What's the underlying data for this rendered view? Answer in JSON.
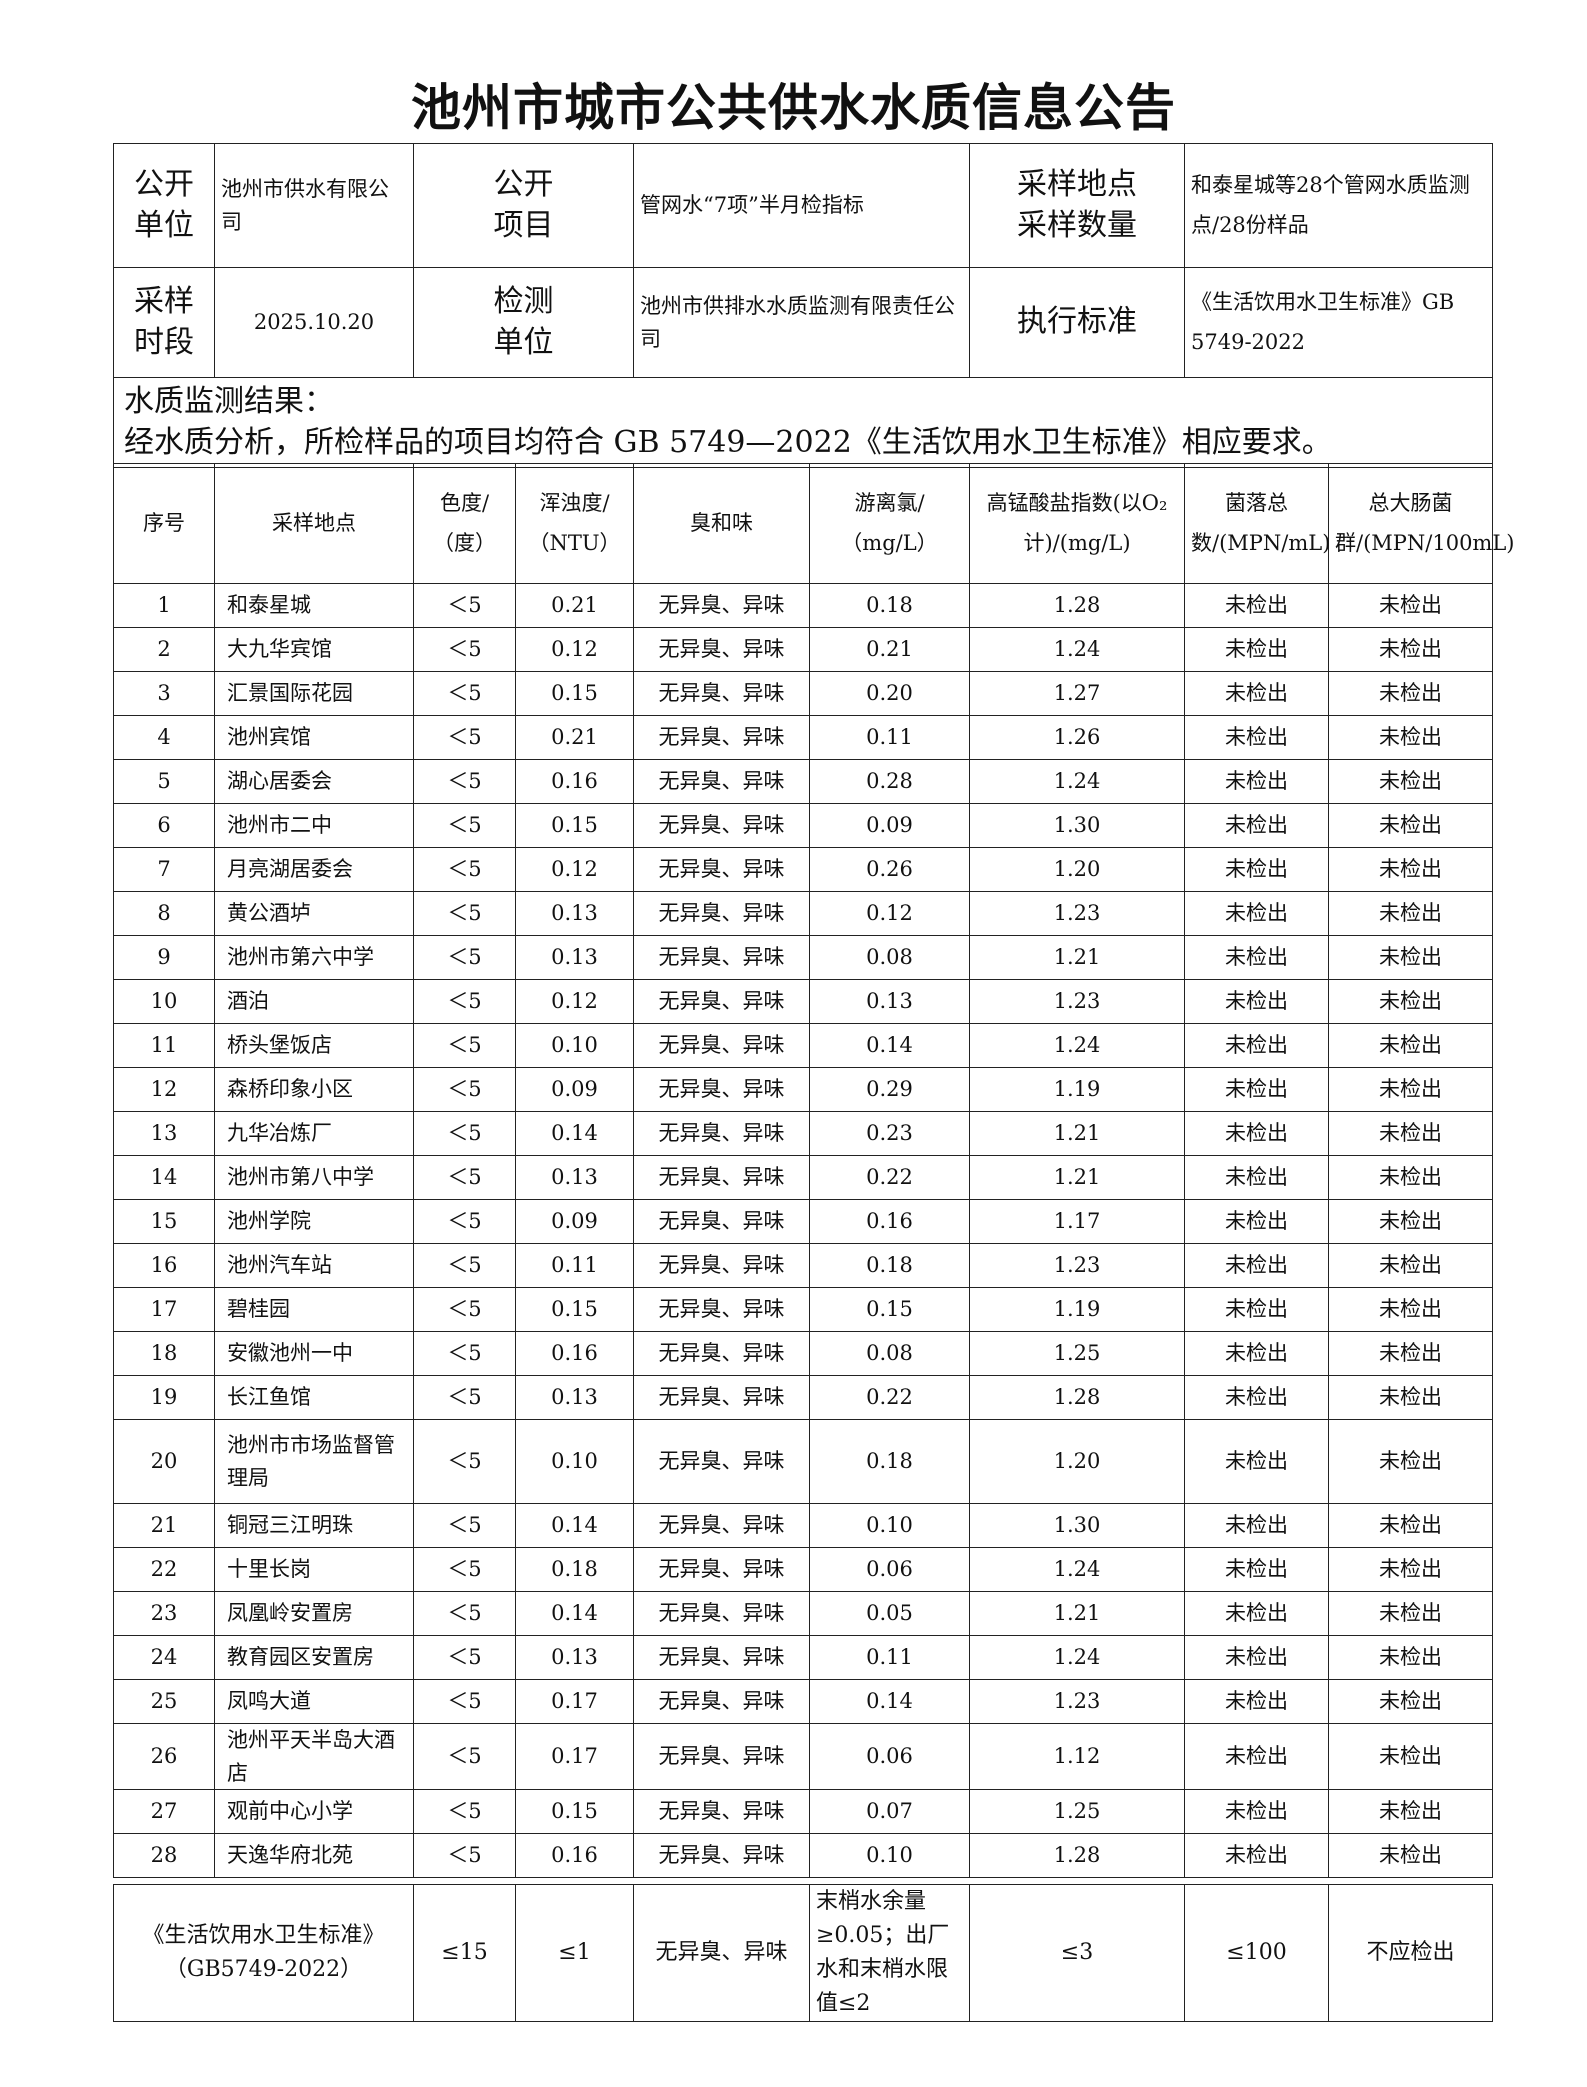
{
  "title": "池州市城市公共供水水质信息公告",
  "info": {
    "publisher_label": "公开\n单位",
    "publisher": "池州市供水有限公司",
    "item_label": "公开\n项目",
    "item": "管网水“7项”半月检指标",
    "site_label": "采样地点\n采样数量",
    "site": "和泰星城等28个管网水质监测点/28份样品",
    "period_label": "采样\n时段",
    "period": "2025.10.20",
    "lab_label": "检测\n单位",
    "lab": "池州市供排水水质监测有限责任公司",
    "standard_label": "执行标准",
    "standard": "《生活饮用水卫生标准》GB 5749-2022"
  },
  "result_heading": "水质监测结果：",
  "result_text": "经水质分析，所检样品的项目均符合 GB 5749—2022《生活饮用水卫生标准》相应要求。",
  "columns": [
    "序号",
    "采样地点",
    "色度/（度）",
    "浑浊度/（NTU）",
    "臭和味",
    "游离氯/（mg/L）",
    "高锰酸盐指数(以O₂计)/(mg/L)",
    "菌落总数/(MPN/mL)",
    "总大肠菌群/(MPN/100mL)"
  ],
  "rows": [
    [
      "1",
      "和泰星城",
      "＜5",
      "0.21",
      "无异臭、异味",
      "0.18",
      "1.28",
      "未检出",
      "未检出"
    ],
    [
      "2",
      "大九华宾馆",
      "＜5",
      "0.12",
      "无异臭、异味",
      "0.21",
      "1.24",
      "未检出",
      "未检出"
    ],
    [
      "3",
      "汇景国际花园",
      "＜5",
      "0.15",
      "无异臭、异味",
      "0.20",
      "1.27",
      "未检出",
      "未检出"
    ],
    [
      "4",
      "池州宾馆",
      "＜5",
      "0.21",
      "无异臭、异味",
      "0.11",
      "1.26",
      "未检出",
      "未检出"
    ],
    [
      "5",
      "湖心居委会",
      "＜5",
      "0.16",
      "无异臭、异味",
      "0.28",
      "1.24",
      "未检出",
      "未检出"
    ],
    [
      "6",
      "池州市二中",
      "＜5",
      "0.15",
      "无异臭、异味",
      "0.09",
      "1.30",
      "未检出",
      "未检出"
    ],
    [
      "7",
      "月亮湖居委会",
      "＜5",
      "0.12",
      "无异臭、异味",
      "0.26",
      "1.20",
      "未检出",
      "未检出"
    ],
    [
      "8",
      "黄公酒垆",
      "＜5",
      "0.13",
      "无异臭、异味",
      "0.12",
      "1.23",
      "未检出",
      "未检出"
    ],
    [
      "9",
      "池州市第六中学",
      "＜5",
      "0.13",
      "无异臭、异味",
      "0.08",
      "1.21",
      "未检出",
      "未检出"
    ],
    [
      "10",
      "酒泊",
      "＜5",
      "0.12",
      "无异臭、异味",
      "0.13",
      "1.23",
      "未检出",
      "未检出"
    ],
    [
      "11",
      "桥头堡饭店",
      "＜5",
      "0.10",
      "无异臭、异味",
      "0.14",
      "1.24",
      "未检出",
      "未检出"
    ],
    [
      "12",
      "森桥印象小区",
      "＜5",
      "0.09",
      "无异臭、异味",
      "0.29",
      "1.19",
      "未检出",
      "未检出"
    ],
    [
      "13",
      "九华冶炼厂",
      "＜5",
      "0.14",
      "无异臭、异味",
      "0.23",
      "1.21",
      "未检出",
      "未检出"
    ],
    [
      "14",
      "池州市第八中学",
      "＜5",
      "0.13",
      "无异臭、异味",
      "0.22",
      "1.21",
      "未检出",
      "未检出"
    ],
    [
      "15",
      "池州学院",
      "＜5",
      "0.09",
      "无异臭、异味",
      "0.16",
      "1.17",
      "未检出",
      "未检出"
    ],
    [
      "16",
      "池州汽车站",
      "＜5",
      "0.11",
      "无异臭、异味",
      "0.18",
      "1.23",
      "未检出",
      "未检出"
    ],
    [
      "17",
      "碧桂园",
      "＜5",
      "0.15",
      "无异臭、异味",
      "0.15",
      "1.19",
      "未检出",
      "未检出"
    ],
    [
      "18",
      "安徽池州一中",
      "＜5",
      "0.16",
      "无异臭、异味",
      "0.08",
      "1.25",
      "未检出",
      "未检出"
    ],
    [
      "19",
      "长江鱼馆",
      "＜5",
      "0.13",
      "无异臭、异味",
      "0.22",
      "1.28",
      "未检出",
      "未检出"
    ],
    [
      "20",
      "池州市市场监督管理局",
      "＜5",
      "0.10",
      "无异臭、异味",
      "0.18",
      "1.20",
      "未检出",
      "未检出"
    ],
    [
      "21",
      "铜冠三江明珠",
      "＜5",
      "0.14",
      "无异臭、异味",
      "0.10",
      "1.30",
      "未检出",
      "未检出"
    ],
    [
      "22",
      "十里长岗",
      "＜5",
      "0.18",
      "无异臭、异味",
      "0.06",
      "1.24",
      "未检出",
      "未检出"
    ],
    [
      "23",
      "凤凰岭安置房",
      "＜5",
      "0.14",
      "无异臭、异味",
      "0.05",
      "1.21",
      "未检出",
      "未检出"
    ],
    [
      "24",
      "教育园区安置房",
      "＜5",
      "0.13",
      "无异臭、异味",
      "0.11",
      "1.24",
      "未检出",
      "未检出"
    ],
    [
      "25",
      "凤鸣大道",
      "＜5",
      "0.17",
      "无异臭、异味",
      "0.14",
      "1.23",
      "未检出",
      "未检出"
    ],
    [
      "26",
      "池州平天半岛大酒店",
      "＜5",
      "0.17",
      "无异臭、异味",
      "0.06",
      "1.12",
      "未检出",
      "未检出"
    ],
    [
      "27",
      "观前中心小学",
      "＜5",
      "0.15",
      "无异臭、异味",
      "0.07",
      "1.25",
      "未检出",
      "未检出"
    ],
    [
      "28",
      "天逸华府北苑",
      "＜5",
      "0.16",
      "无异臭、异味",
      "0.10",
      "1.28",
      "未检出",
      "未检出"
    ]
  ],
  "standard_row": [
    "《生活饮用水卫生标准》\n（GB5749-2022）",
    "≤15",
    "≤1",
    "无异臭、异味",
    "末梢水余量≥0.05；出厂水和末梢水限值≤2",
    "≤3",
    "≤100",
    "不应检出"
  ]
}
